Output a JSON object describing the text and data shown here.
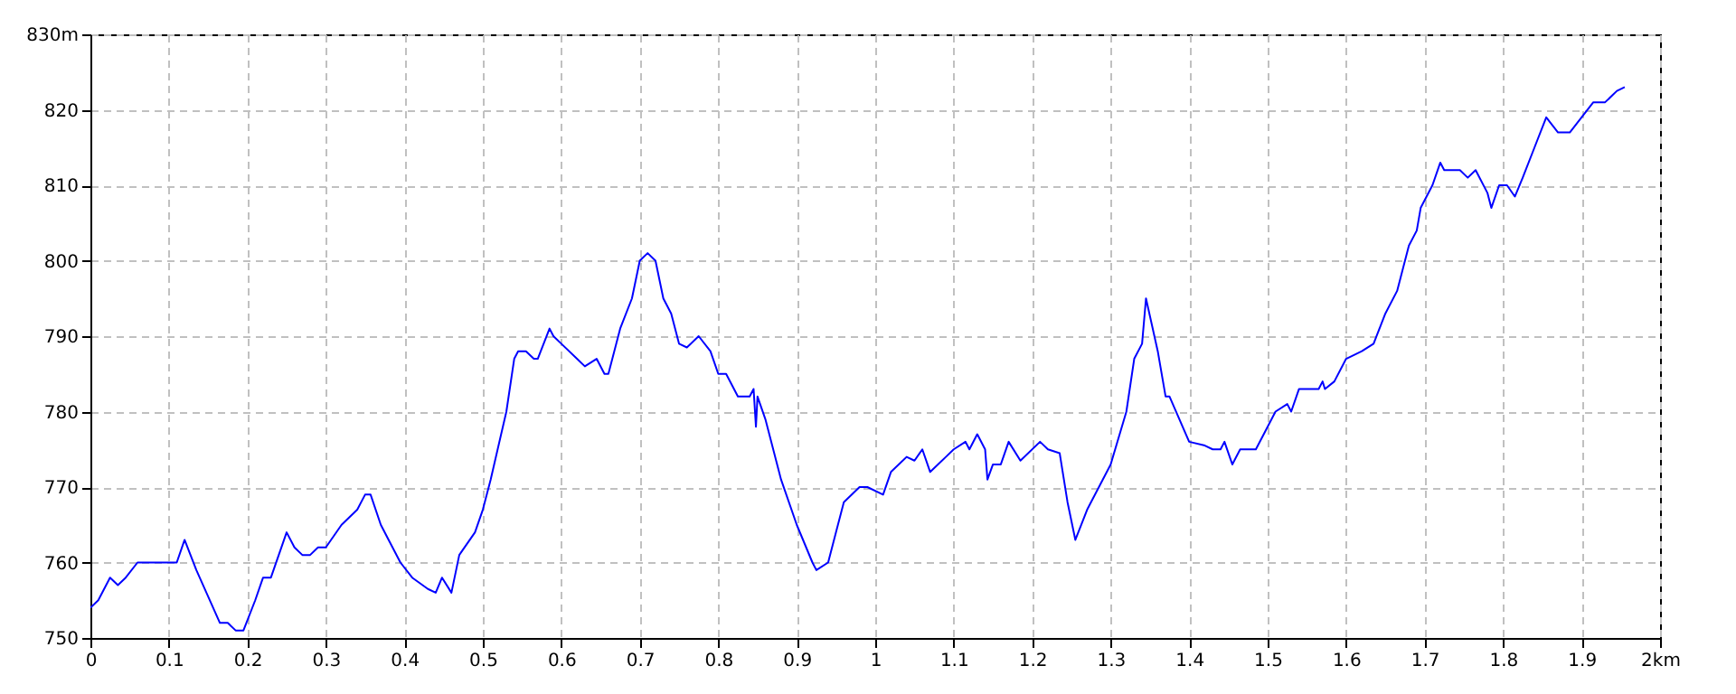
{
  "chart_data": {
    "type": "line",
    "x": [
      0,
      0.01,
      0.025,
      0.035,
      0.045,
      0.06,
      0.11,
      0.12,
      0.135,
      0.165,
      0.175,
      0.185,
      0.195,
      0.21,
      0.22,
      0.23,
      0.25,
      0.26,
      0.27,
      0.28,
      0.29,
      0.3,
      0.32,
      0.34,
      0.35,
      0.357,
      0.37,
      0.38,
      0.395,
      0.41,
      0.43,
      0.44,
      0.448,
      0.46,
      0.47,
      0.49,
      0.5,
      0.51,
      0.53,
      0.54,
      0.545,
      0.555,
      0.565,
      0.57,
      0.585,
      0.59,
      0.6,
      0.62,
      0.63,
      0.645,
      0.655,
      0.66,
      0.675,
      0.69,
      0.7,
      0.71,
      0.72,
      0.73,
      0.74,
      0.75,
      0.76,
      0.775,
      0.79,
      0.8,
      0.81,
      0.825,
      0.84,
      0.845,
      0.848,
      0.85,
      0.86,
      0.88,
      0.9,
      0.92,
      0.925,
      0.94,
      0.95,
      0.96,
      0.98,
      0.99,
      1.01,
      1.02,
      1.04,
      1.05,
      1.06,
      1.07,
      1.09,
      1.1,
      1.115,
      1.12,
      1.13,
      1.14,
      1.143,
      1.15,
      1.16,
      1.17,
      1.185,
      1.21,
      1.22,
      1.235,
      1.245,
      1.255,
      1.27,
      1.3,
      1.32,
      1.33,
      1.34,
      1.345,
      1.36,
      1.37,
      1.375,
      1.4,
      1.42,
      1.43,
      1.44,
      1.445,
      1.455,
      1.465,
      1.485,
      1.5,
      1.51,
      1.525,
      1.53,
      1.54,
      1.565,
      1.57,
      1.573,
      1.585,
      1.6,
      1.62,
      1.635,
      1.65,
      1.665,
      1.68,
      1.69,
      1.695,
      1.71,
      1.72,
      1.725,
      1.745,
      1.755,
      1.765,
      1.78,
      1.785,
      1.795,
      1.805,
      1.815,
      1.825,
      1.84,
      1.855,
      1.87,
      1.885,
      1.9,
      1.915,
      1.93,
      1.945,
      1.955
    ],
    "series": [
      {
        "color": "#0000ff",
        "values": [
          754,
          755,
          758,
          757,
          758,
          760,
          760,
          763,
          759,
          752,
          752,
          751,
          751,
          755,
          758,
          758,
          764,
          762,
          761,
          761,
          762,
          762,
          765,
          767,
          769,
          769,
          765,
          763,
          760,
          758,
          756.5,
          756,
          758,
          756,
          761,
          764,
          767,
          771,
          780,
          787,
          788,
          788,
          787,
          787,
          791,
          790,
          789,
          787,
          786,
          787,
          785,
          785,
          791,
          795,
          800,
          801,
          800,
          795,
          793,
          789,
          788.5,
          790,
          788,
          785,
          785,
          782,
          782,
          783,
          778,
          782,
          779,
          771,
          765,
          760,
          759,
          760,
          764,
          768,
          770,
          770,
          769,
          772,
          774,
          773.5,
          775,
          772,
          774,
          775,
          776,
          775,
          777,
          775,
          771,
          773,
          773,
          776,
          773.5,
          776,
          775,
          774.5,
          768,
          763,
          767,
          773,
          780,
          787,
          789,
          795,
          788,
          782,
          782,
          776,
          775.5,
          775,
          775,
          776,
          773,
          775,
          775,
          778,
          780,
          781,
          780,
          783,
          783,
          784,
          783,
          784,
          787,
          788,
          789,
          793,
          796,
          802,
          804,
          807,
          810,
          813,
          812,
          812,
          811,
          812,
          809,
          807,
          810,
          810,
          808.5,
          811,
          815,
          819,
          817,
          817,
          819,
          821,
          821,
          822.5,
          823
        ]
      }
    ],
    "xlim": [
      0,
      2
    ],
    "xticks": [
      0,
      0.1,
      0.2,
      0.3,
      0.4,
      0.5,
      0.6,
      0.7,
      0.8,
      0.9,
      1,
      1.1,
      1.2,
      1.3,
      1.4,
      1.5,
      1.6,
      1.7,
      1.8,
      1.9,
      {
        "value": 2,
        "label": "2km"
      }
    ],
    "ylim": [
      750,
      830
    ],
    "yticks": [
      750,
      760,
      770,
      780,
      790,
      800,
      810,
      820,
      {
        "value": 830,
        "label": "830m"
      }
    ],
    "grid": true
  }
}
